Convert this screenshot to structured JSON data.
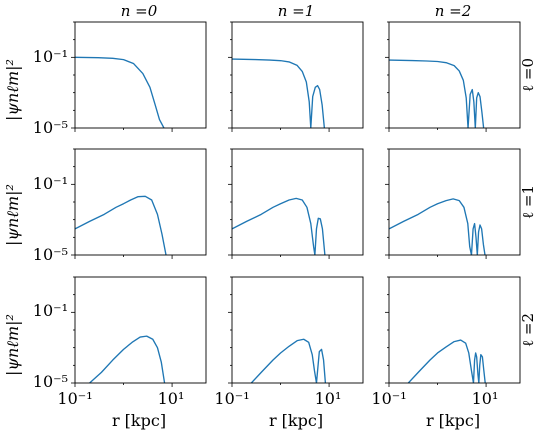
{
  "chart_data": {
    "type": "line",
    "layout": "3x3 grid of subplots",
    "line_color": "#1f77b4",
    "xscale": "log",
    "yscale": "log",
    "xlim": [
      0.1,
      50
    ],
    "ylim": [
      1e-05,
      10
    ],
    "grid": false,
    "column_titles": [
      "n =0",
      "n =1",
      "n =2"
    ],
    "row_labels": [
      "ℓ =0",
      "ℓ =1",
      "ℓ =2"
    ],
    "ylabel": "|ψnℓm|²",
    "xlabel": "r [kpc]",
    "ytick_labels": [
      "10⁻⁵",
      "10⁻¹"
    ],
    "xtick_labels": [
      "10⁻¹",
      "10¹"
    ],
    "panels": [
      {
        "n": 0,
        "l": 0,
        "x": [
          0.1,
          0.3,
          0.6,
          1.0,
          1.6,
          2.5,
          3.5,
          4.5,
          5.5,
          6.8
        ],
        "y": [
          0.1,
          0.095,
          0.088,
          0.074,
          0.045,
          0.012,
          0.002,
          0.0002,
          3e-05,
          1e-05
        ]
      },
      {
        "n": 1,
        "l": 0,
        "x": [
          0.1,
          0.3,
          0.6,
          1.0,
          1.5,
          2.2,
          2.8,
          3.4,
          3.9,
          4.2,
          4.6,
          5.2,
          5.8,
          6.4,
          7.2,
          8.0
        ],
        "y": [
          0.08,
          0.075,
          0.07,
          0.065,
          0.055,
          0.035,
          0.016,
          0.004,
          0.0003,
          1e-05,
          0.0006,
          0.002,
          0.0025,
          0.0015,
          0.0002,
          1e-05
        ]
      },
      {
        "n": 2,
        "l": 0,
        "x": [
          0.1,
          0.3,
          0.6,
          1.0,
          1.5,
          2.2,
          2.8,
          3.4,
          3.9,
          4.25,
          4.7,
          5.2,
          5.6,
          6.0,
          6.4,
          6.9,
          7.5,
          8.2,
          8.9
        ],
        "y": [
          0.07,
          0.066,
          0.062,
          0.058,
          0.05,
          0.034,
          0.017,
          0.005,
          0.0005,
          1e-05,
          0.0008,
          0.0015,
          0.0003,
          1e-05,
          0.0005,
          0.001,
          0.0006,
          8e-05,
          1e-05
        ]
      },
      {
        "n": 0,
        "l": 1,
        "x": [
          0.1,
          0.2,
          0.4,
          0.7,
          1.0,
          1.4,
          2.0,
          2.8,
          3.8,
          5.0,
          6.2,
          7.5
        ],
        "y": [
          0.0003,
          0.0008,
          0.002,
          0.005,
          0.008,
          0.013,
          0.02,
          0.021,
          0.013,
          0.002,
          0.00015,
          1e-05
        ]
      },
      {
        "n": 1,
        "l": 1,
        "x": [
          0.1,
          0.2,
          0.4,
          0.7,
          1.0,
          1.5,
          2.1,
          2.8,
          3.5,
          4.2,
          4.8,
          5.1,
          5.5,
          6.0,
          6.6,
          7.3,
          8.2
        ],
        "y": [
          0.0003,
          0.0008,
          0.002,
          0.005,
          0.008,
          0.013,
          0.016,
          0.013,
          0.005,
          0.0006,
          3e-05,
          1e-05,
          0.0003,
          0.0012,
          0.0011,
          0.0003,
          1e-05
        ]
      },
      {
        "n": 2,
        "l": 1,
        "x": [
          0.1,
          0.2,
          0.4,
          0.7,
          1.0,
          1.5,
          2.1,
          2.8,
          3.5,
          4.2,
          4.6,
          5.0,
          5.4,
          5.8,
          6.2,
          6.6,
          7.0,
          7.5,
          8.1,
          8.8,
          9.5
        ],
        "y": [
          0.0003,
          0.0008,
          0.002,
          0.005,
          0.008,
          0.012,
          0.015,
          0.012,
          0.005,
          0.0006,
          3e-05,
          1e-05,
          0.0003,
          0.0006,
          0.0001,
          1e-05,
          0.0002,
          0.0005,
          0.0003,
          4e-05,
          1e-05
        ]
      },
      {
        "n": 0,
        "l": 2,
        "x": [
          0.2,
          0.35,
          0.6,
          1.0,
          1.5,
          2.2,
          3.0,
          4.0,
          5.0,
          6.0,
          7.0
        ],
        "y": [
          1e-05,
          4e-05,
          0.0002,
          0.0008,
          0.002,
          0.004,
          0.0045,
          0.003,
          0.001,
          0.00015,
          1e-05
        ]
      },
      {
        "n": 1,
        "l": 2,
        "x": [
          0.25,
          0.4,
          0.7,
          1.0,
          1.5,
          2.2,
          3.0,
          3.8,
          4.5,
          5.0,
          5.5,
          5.8,
          6.3,
          7.0,
          7.7,
          8.4
        ],
        "y": [
          1e-05,
          4e-05,
          0.0002,
          0.0005,
          0.0012,
          0.0025,
          0.003,
          0.002,
          0.0004,
          5e-05,
          1e-05,
          5e-05,
          0.0006,
          0.0008,
          0.0002,
          1e-05
        ]
      },
      {
        "n": 2,
        "l": 2,
        "x": [
          0.25,
          0.4,
          0.7,
          1.0,
          1.5,
          2.2,
          3.0,
          3.8,
          4.4,
          5.0,
          5.5,
          5.8,
          6.1,
          6.4,
          6.8,
          7.1,
          7.4,
          7.8,
          8.4,
          9.0,
          9.6
        ],
        "y": [
          1e-05,
          4e-05,
          0.0002,
          0.0005,
          0.0011,
          0.0022,
          0.0027,
          0.0018,
          0.0005,
          5e-05,
          1e-05,
          0.0002,
          0.0005,
          0.0003,
          3e-05,
          1e-05,
          0.0001,
          0.0004,
          0.0003,
          5e-05,
          1e-05
        ]
      }
    ]
  }
}
